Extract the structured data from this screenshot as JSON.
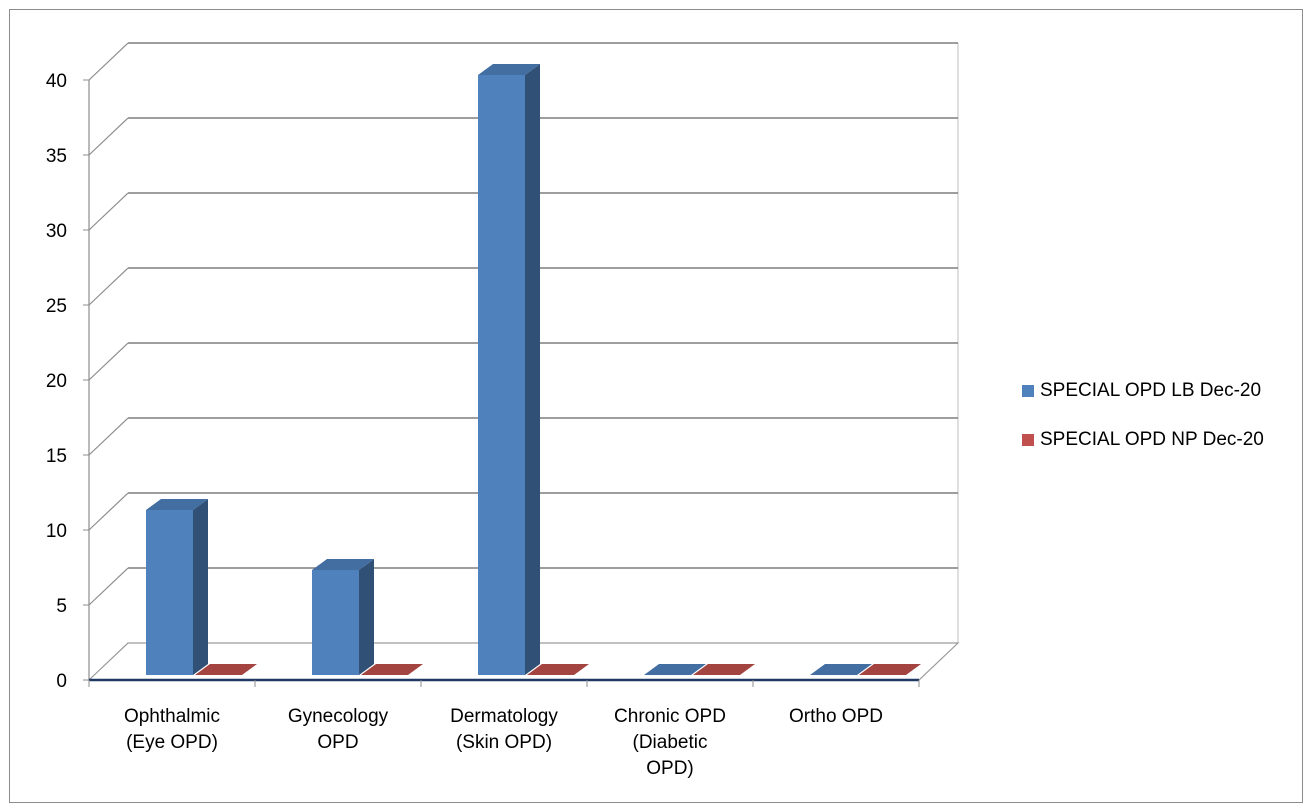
{
  "chart_data": {
    "type": "bar",
    "title": "",
    "xlabel": "",
    "ylabel": "",
    "ylim": [
      0,
      40
    ],
    "yticks": [
      0,
      5,
      10,
      15,
      20,
      25,
      30,
      35,
      40
    ],
    "categories": [
      [
        "Ophthalmic",
        "(Eye OPD)"
      ],
      [
        "Gynecology",
        "OPD"
      ],
      [
        "Dermatology",
        "(Skin OPD)"
      ],
      [
        "Chronic OPD",
        "(Diabetic",
        "OPD)"
      ],
      [
        "Ortho OPD"
      ]
    ],
    "series": [
      {
        "name": "SPECIAL OPD LB Dec-20",
        "values": [
          11,
          7,
          40,
          0,
          0
        ],
        "color": "#4f81bd"
      },
      {
        "name": "SPECIAL OPD NP Dec-20",
        "values": [
          0,
          0,
          0,
          0,
          0
        ],
        "color": "#c0504d"
      }
    ],
    "grid": true,
    "legend": "right",
    "style": "3d-clustered-column"
  }
}
